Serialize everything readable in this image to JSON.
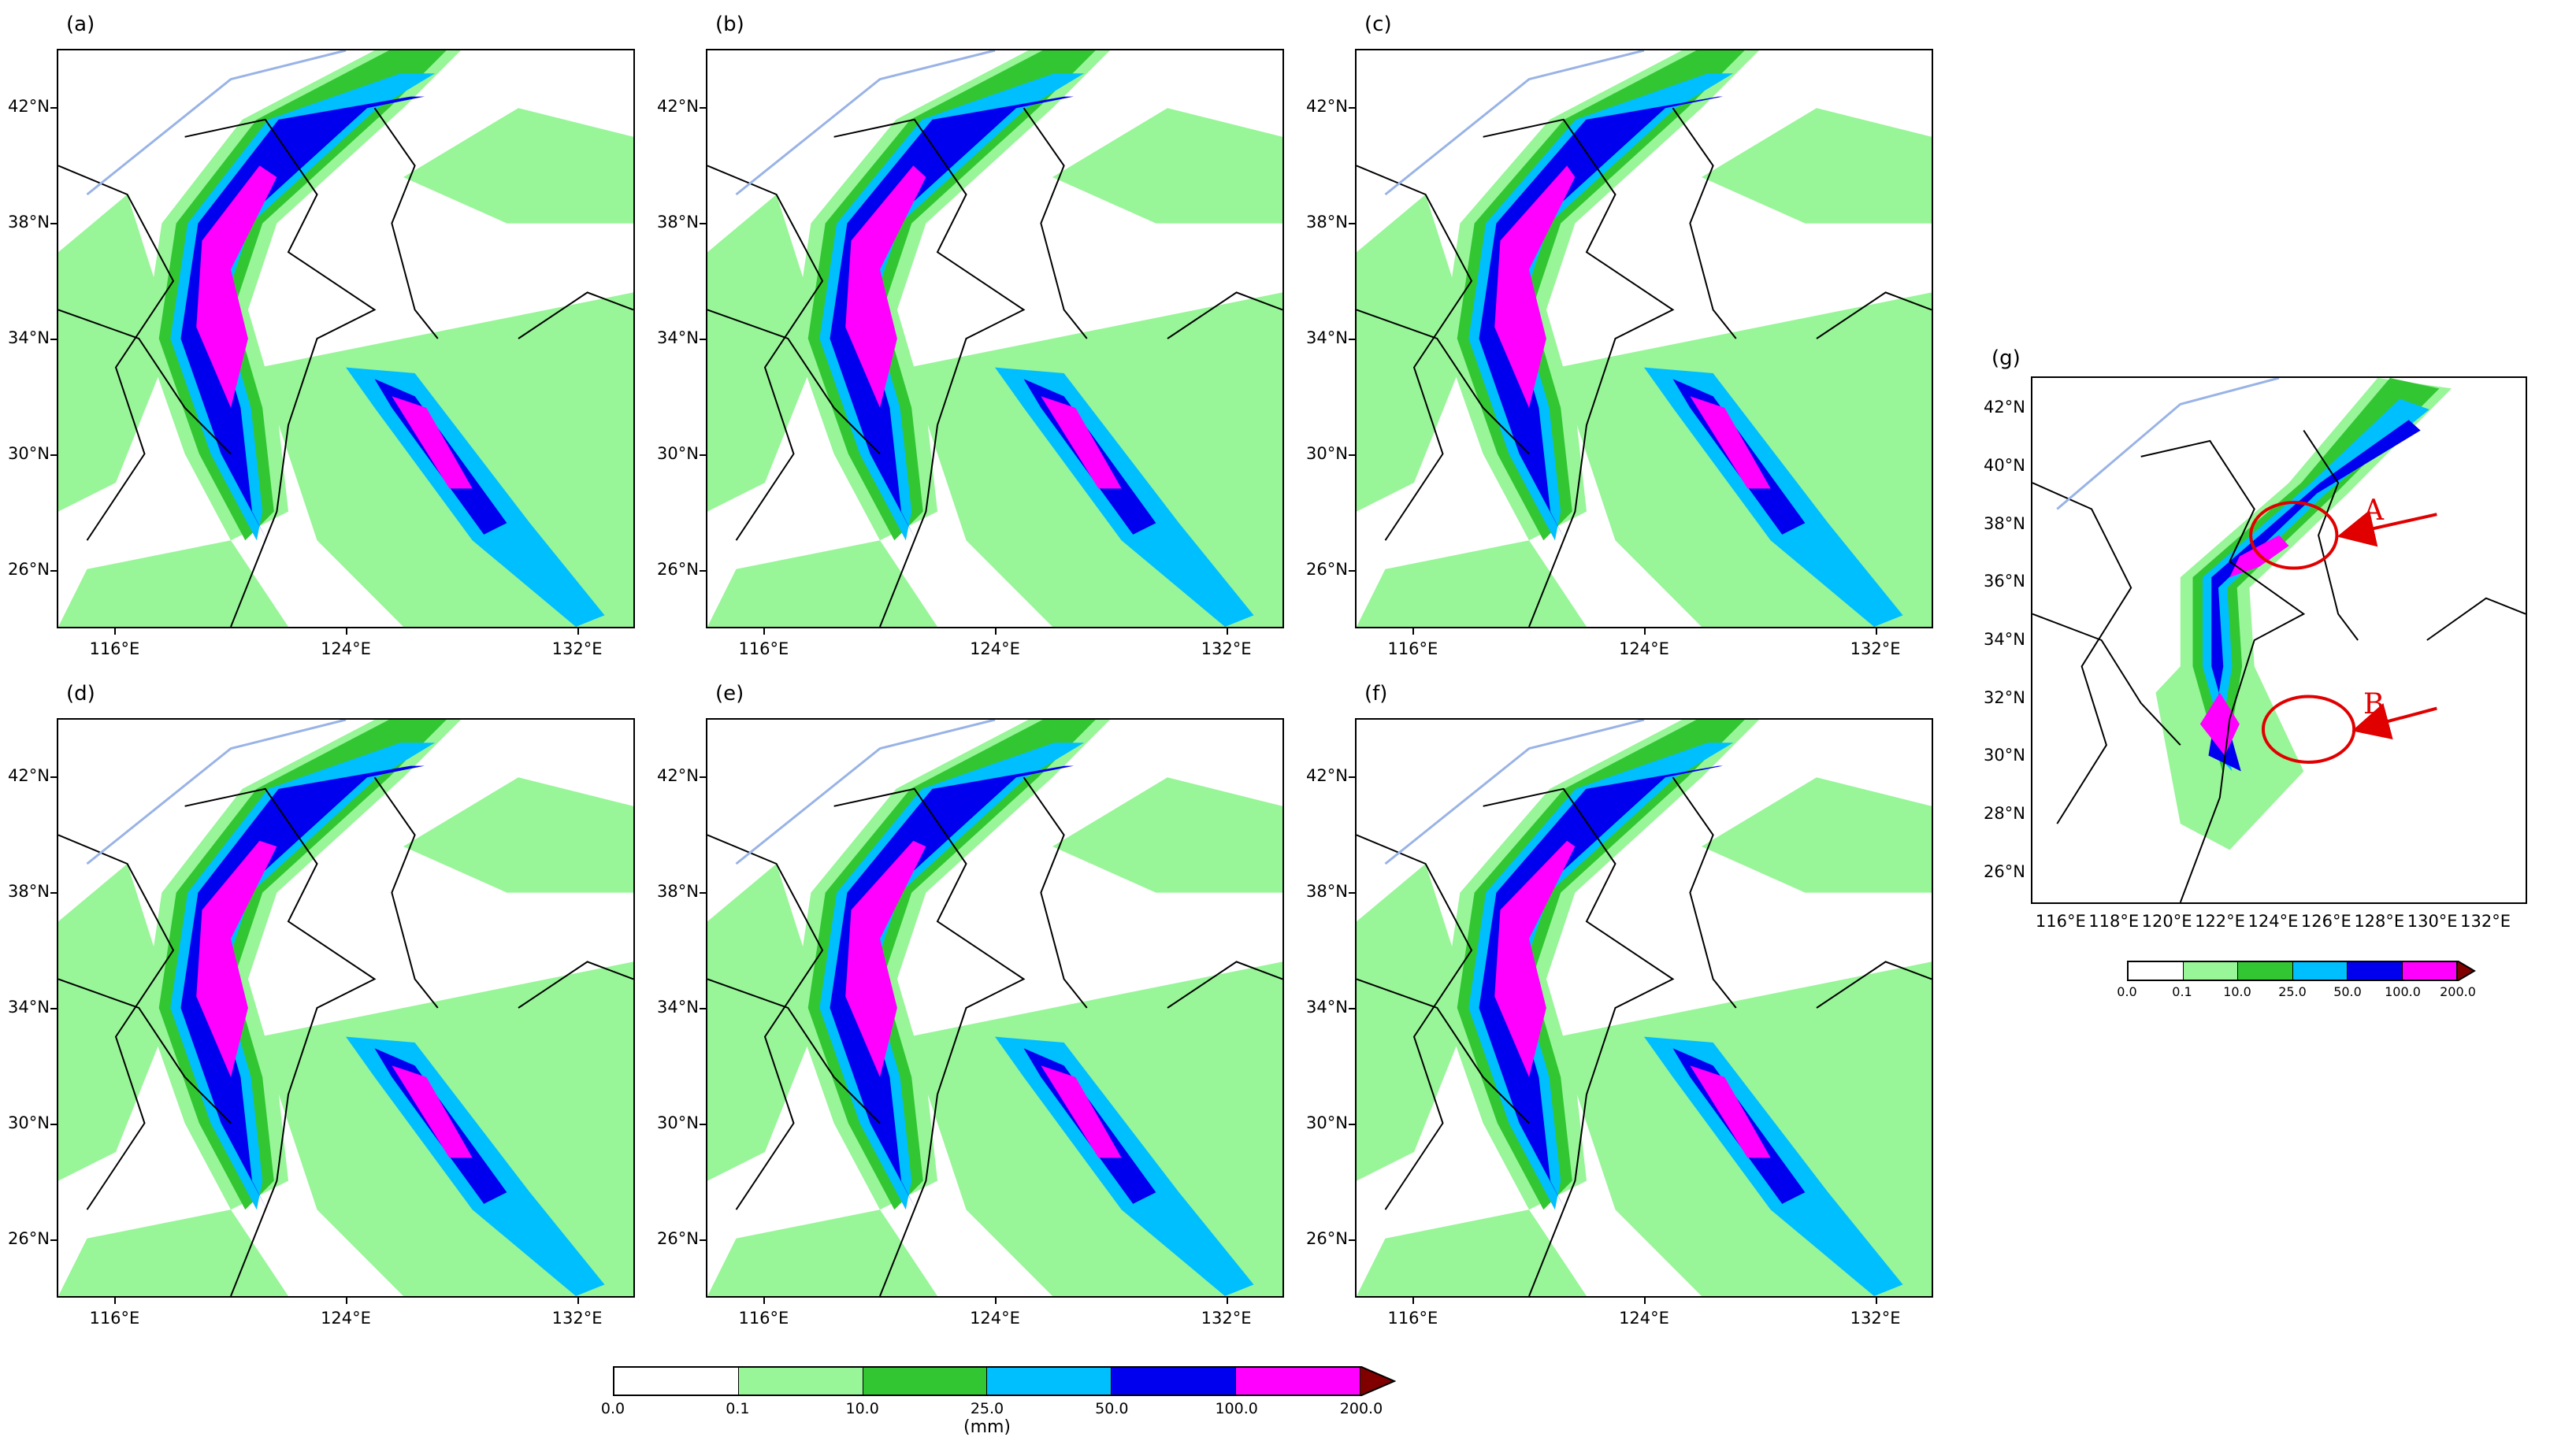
{
  "panels": [
    {
      "label": "(a)"
    },
    {
      "label": "(b)"
    },
    {
      "label": "(c)"
    },
    {
      "label": "(d)"
    },
    {
      "label": "(e)"
    },
    {
      "label": "(f)"
    }
  ],
  "main_axes": {
    "lat_labels": [
      "42°N",
      "38°N",
      "34°N",
      "30°N",
      "26°N"
    ],
    "lon_labels": [
      "116°E",
      "124°E",
      "132°E"
    ]
  },
  "panel_g": {
    "label": "(g)",
    "lat_labels": [
      "42°N",
      "40°N",
      "38°N",
      "36°N",
      "34°N",
      "32°N",
      "30°N",
      "28°N",
      "26°N"
    ],
    "lon_labels": [
      "116°E",
      "118°E",
      "120°E",
      "122°E",
      "124°E",
      "126°E",
      "128°E",
      "130°E",
      "132°E"
    ],
    "annotations": [
      "A",
      "B"
    ]
  },
  "colorbar": {
    "ticks": [
      "0.0",
      "0.1",
      "10.0",
      "25.0",
      "50.0",
      "100.0",
      "200.0"
    ],
    "colors": [
      "#ffffff",
      "#98f598",
      "#33c633",
      "#00bfff",
      "#0000ee",
      "#ff00ff"
    ],
    "extend_color": "#800000",
    "unit": "(mm)"
  },
  "colorbar_small": {
    "ticks": [
      "0.0",
      "0.1",
      "10.0",
      "25.0",
      "50.0",
      "100.0",
      "200.0"
    ]
  },
  "colors": {
    "land_line": "#000000",
    "river": "#99b3e6",
    "annotation": "#e00000"
  }
}
